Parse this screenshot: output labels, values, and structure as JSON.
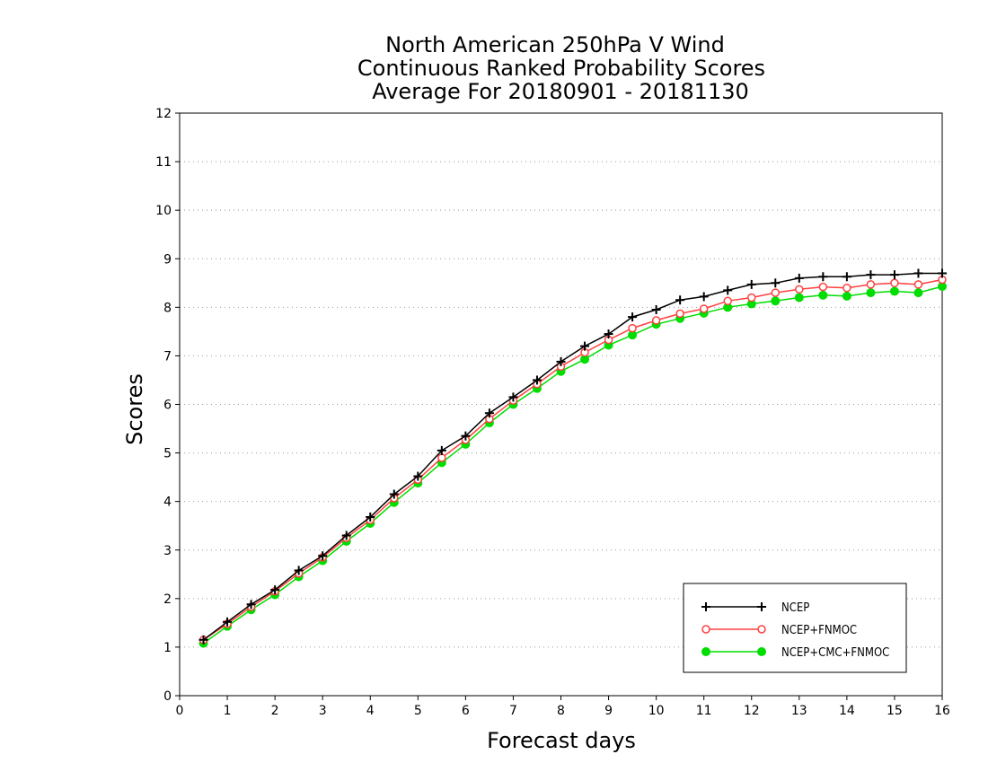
{
  "chart_data": {
    "type": "line",
    "title_lines": [
      "North American 250hPa V Wind",
      "Continuous Ranked Probability Scores",
      "Average For 20180901 - 20181130"
    ],
    "xlabel": "Forecast days",
    "ylabel": "Scores",
    "xlim": [
      0,
      16
    ],
    "ylim": [
      0,
      12
    ],
    "x_ticks": [
      "0",
      "1",
      "2",
      "3",
      "4",
      "5",
      "6",
      "7",
      "8",
      "9",
      "10",
      "11",
      "12",
      "13",
      "14",
      "15",
      "16"
    ],
    "y_ticks": [
      "0",
      "1",
      "2",
      "3",
      "4",
      "5",
      "6",
      "7",
      "8",
      "9",
      "10",
      "11",
      "12"
    ],
    "grid": "horizontal dotted",
    "legend_position": "bottom-right",
    "x": [
      0.5,
      1,
      1.5,
      2,
      2.5,
      3,
      3.5,
      4,
      4.5,
      5,
      5.5,
      6,
      6.5,
      7,
      7.5,
      8,
      8.5,
      9,
      9.5,
      10,
      10.5,
      11,
      11.5,
      12,
      12.5,
      13,
      13.5,
      14,
      14.5,
      15,
      15.5,
      16
    ],
    "series": [
      {
        "name": "NCEP",
        "color": "#000000",
        "marker": "plus",
        "values": [
          1.15,
          1.52,
          1.88,
          2.18,
          2.58,
          2.88,
          3.3,
          3.68,
          4.15,
          4.52,
          5.05,
          5.35,
          5.82,
          6.15,
          6.5,
          6.88,
          7.2,
          7.45,
          7.8,
          7.95,
          8.15,
          8.22,
          8.35,
          8.47,
          8.5,
          8.6,
          8.63,
          8.63,
          8.67,
          8.67,
          8.7,
          8.7
        ]
      },
      {
        "name": "NCEP+FNMOC",
        "color": "#ff4040",
        "marker": "open-circle",
        "values": [
          1.15,
          1.48,
          1.83,
          2.15,
          2.52,
          2.85,
          3.25,
          3.62,
          4.07,
          4.45,
          4.9,
          5.27,
          5.7,
          6.08,
          6.42,
          6.78,
          7.07,
          7.33,
          7.57,
          7.73,
          7.87,
          7.97,
          8.13,
          8.2,
          8.3,
          8.37,
          8.42,
          8.4,
          8.47,
          8.5,
          8.47,
          8.57
        ]
      },
      {
        "name": "NCEP+CMC+FNMOC",
        "color": "#00dd00",
        "marker": "filled-circle",
        "values": [
          1.08,
          1.43,
          1.77,
          2.08,
          2.45,
          2.78,
          3.18,
          3.55,
          3.98,
          4.38,
          4.8,
          5.18,
          5.62,
          6.0,
          6.33,
          6.68,
          6.93,
          7.22,
          7.43,
          7.65,
          7.77,
          7.88,
          8.0,
          8.07,
          8.13,
          8.2,
          8.25,
          8.23,
          8.3,
          8.33,
          8.3,
          8.43
        ]
      }
    ]
  }
}
